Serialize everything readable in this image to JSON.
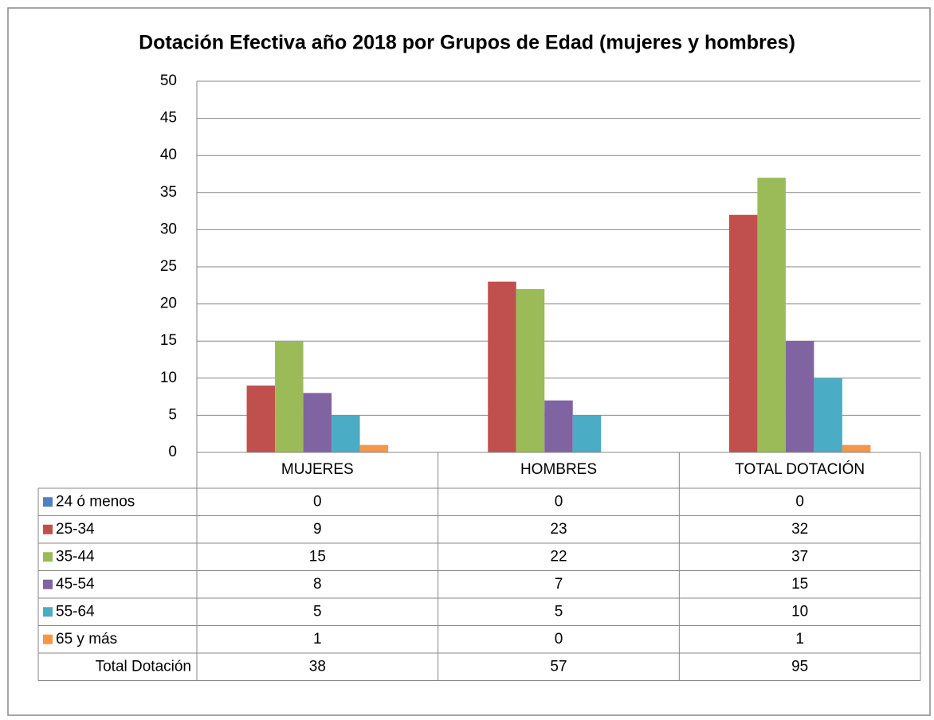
{
  "chart_data": {
    "type": "bar",
    "title": "Dotación Efectiva año 2018 por Grupos de Edad (mujeres y hombres)",
    "categories": [
      "MUJERES",
      "HOMBRES",
      "TOTAL DOTACIÓN"
    ],
    "series": [
      {
        "name": "24 ó menos",
        "color": "#4f81bd",
        "values": [
          0,
          0,
          0
        ]
      },
      {
        "name": "25-34",
        "color": "#c0504d",
        "values": [
          9,
          23,
          32
        ]
      },
      {
        "name": "35-44",
        "color": "#9bbb59",
        "values": [
          15,
          22,
          37
        ]
      },
      {
        "name": "45-54",
        "color": "#8064a2",
        "values": [
          8,
          7,
          15
        ]
      },
      {
        "name": "55-64",
        "color": "#4bacc6",
        "values": [
          5,
          5,
          10
        ]
      },
      {
        "name": "65 y más",
        "color": "#f79646",
        "values": [
          1,
          0,
          1
        ]
      }
    ],
    "total_row": {
      "name": "Total Dotación",
      "values": [
        38,
        57,
        95
      ]
    },
    "ylim": [
      0,
      50
    ],
    "yticks": [
      0,
      5,
      10,
      15,
      20,
      25,
      30,
      35,
      40,
      45,
      50
    ],
    "grid": true
  }
}
